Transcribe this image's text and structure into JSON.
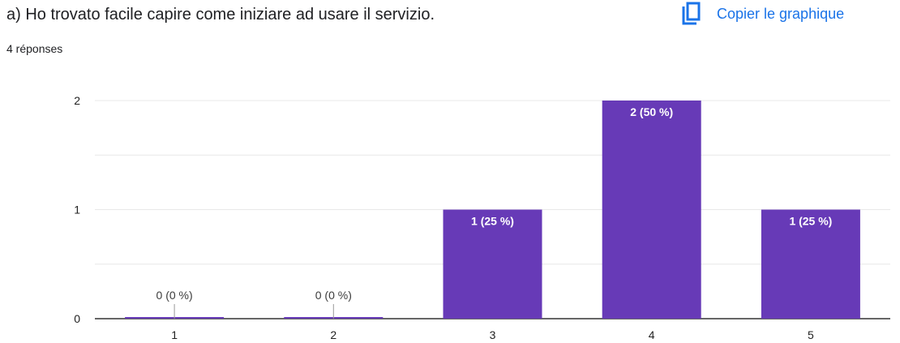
{
  "question": {
    "title": "a) Ho trovato facile capire come iniziare ad usare il servizio.",
    "response_count": "4 réponses"
  },
  "copy_chart": {
    "label": "Copier le graphique",
    "icon": "copy-icon",
    "color": "#1a73e8"
  },
  "colors": {
    "bar": "#673ab7",
    "grid": "#e8e8e8",
    "axis": "#333333",
    "label_inside": "#ffffff",
    "label_outside": "#3c3c3c"
  },
  "chart_data": {
    "type": "bar",
    "categories": [
      "1",
      "2",
      "3",
      "4",
      "5"
    ],
    "values": [
      0,
      0,
      1,
      2,
      1
    ],
    "data_labels": [
      "0 (0 %)",
      "0 (0 %)",
      "1 (25 %)",
      "2 (50 %)",
      "1 (25 %)"
    ],
    "y_ticks": [
      "0",
      "1",
      "2"
    ],
    "ylim": [
      0,
      2
    ],
    "grid": true,
    "legend": "none"
  }
}
